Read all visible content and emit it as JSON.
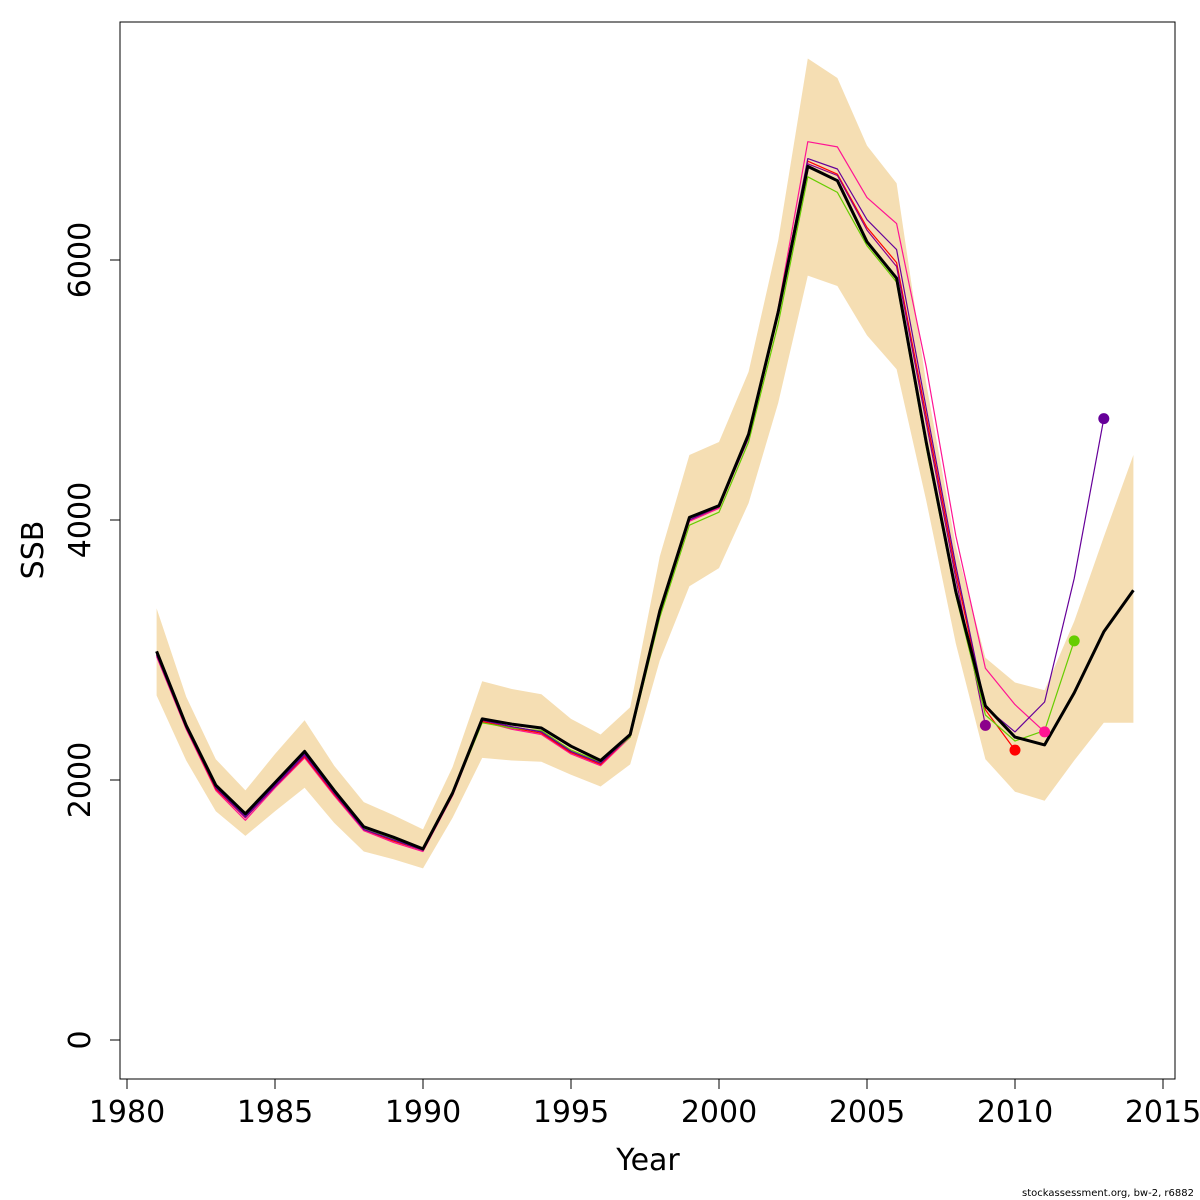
{
  "chart_data": {
    "type": "line",
    "xlabel": "Year",
    "ylabel": "SSB",
    "xlim": [
      1980,
      2015
    ],
    "ylim": [
      0,
      8000
    ],
    "x_ticks": [
      "1980",
      "1985",
      "1990",
      "1995",
      "2000",
      "2005",
      "2010",
      "2015"
    ],
    "y_ticks": [
      "0",
      "2000",
      "4000",
      "6000"
    ],
    "legend": "none",
    "grid": false,
    "confidence_band": {
      "color": "#F5DEB3",
      "x": [
        1981,
        1982,
        1983,
        1984,
        1985,
        1986,
        1987,
        1988,
        1989,
        1990,
        1991,
        1992,
        1993,
        1994,
        1995,
        1996,
        1997,
        1998,
        1999,
        2000,
        2001,
        2002,
        2003,
        2004,
        2005,
        2006,
        2007,
        2008,
        2009,
        2010,
        2011,
        2012,
        2013,
        2014
      ],
      "lower": [
        2650,
        2150,
        1760,
        1570,
        1760,
        1940,
        1670,
        1450,
        1390,
        1320,
        1710,
        2170,
        2150,
        2140,
        2040,
        1950,
        2120,
        2920,
        3490,
        3630,
        4130,
        4900,
        5880,
        5800,
        5420,
        5160,
        4150,
        3050,
        2160,
        1910,
        1840,
        2150,
        2440,
        2440
      ],
      "upper": [
        3320,
        2640,
        2160,
        1920,
        2200,
        2460,
        2110,
        1830,
        1730,
        1620,
        2100,
        2760,
        2700,
        2660,
        2470,
        2350,
        2560,
        3720,
        4500,
        4600,
        5140,
        6150,
        7550,
        7400,
        6880,
        6590,
        5050,
        3800,
        2940,
        2750,
        2690,
        3220,
        3870,
        4500
      ]
    },
    "series": [
      {
        "color": "#000000",
        "x": [
          1981,
          1982,
          1983,
          1984,
          1985,
          1986,
          1987,
          1988,
          1989,
          1990,
          1991,
          1992,
          1993,
          1994,
          1995,
          1996,
          1997,
          1998,
          1999,
          2000,
          2001,
          2002,
          2003,
          2004,
          2005,
          2006,
          2007,
          2008,
          2009,
          2010,
          2011,
          2012,
          2013,
          2014
        ],
        "values": [
          2990,
          2420,
          1960,
          1740,
          1980,
          2220,
          1920,
          1640,
          1560,
          1470,
          1900,
          2470,
          2430,
          2400,
          2260,
          2150,
          2350,
          3300,
          4020,
          4110,
          4660,
          5600,
          6720,
          6610,
          6140,
          5860,
          4600,
          3450,
          2570,
          2330,
          2270,
          2670,
          3140,
          3460
        ]
      },
      {
        "color": "#FF1493",
        "x": [
          1981,
          1982,
          1983,
          1984,
          1985,
          1986,
          1987,
          1988,
          1989,
          1990,
          1991,
          1992,
          1993,
          1994,
          1995,
          1996,
          1997,
          1998,
          1999,
          2000,
          2001,
          2002,
          2003,
          2004,
          2005,
          2006,
          2007,
          2008,
          2009,
          2010,
          2011
        ],
        "values": [
          2950,
          2390,
          1920,
          1690,
          1940,
          2170,
          1880,
          1610,
          1520,
          1450,
          1880,
          2450,
          2390,
          2350,
          2200,
          2110,
          2330,
          3280,
          3990,
          4090,
          4640,
          5630,
          6910,
          6870,
          6480,
          6280,
          5180,
          3880,
          2860,
          2580,
          2370
        ]
      },
      {
        "color": "#FF0000",
        "x": [
          1981,
          1982,
          1983,
          1984,
          1985,
          1986,
          1987,
          1988,
          1989,
          1990,
          1991,
          1992,
          1993,
          1994,
          1995,
          1996,
          1997,
          1998,
          1999,
          2000,
          2001,
          2002,
          2003,
          2004,
          2005,
          2006,
          2007,
          2008,
          2009,
          2010
        ],
        "values": [
          2960,
          2400,
          1930,
          1710,
          1950,
          2180,
          1890,
          1620,
          1530,
          1460,
          1890,
          2450,
          2400,
          2360,
          2210,
          2120,
          2340,
          3300,
          4000,
          4100,
          4640,
          5600,
          6760,
          6660,
          6250,
          5980,
          4800,
          3600,
          2540,
          2230
        ]
      },
      {
        "color": "#8B008B",
        "x": [
          1981,
          1982,
          1983,
          1984,
          1985,
          1986,
          1987,
          1988,
          1989,
          1990,
          1991,
          1992,
          1993,
          1994,
          1995,
          1996,
          1997,
          1998,
          1999,
          2000,
          2001,
          2002,
          2003,
          2004,
          2005,
          2006,
          2007,
          2008,
          2009
        ],
        "values": [
          2960,
          2400,
          1940,
          1710,
          1950,
          2190,
          1900,
          1620,
          1540,
          1460,
          1890,
          2460,
          2410,
          2370,
          2220,
          2130,
          2340,
          3290,
          4000,
          4100,
          4630,
          5580,
          6740,
          6650,
          6230,
          5950,
          4750,
          3550,
          2420
        ]
      },
      {
        "color": "#66CD00",
        "x": [
          1981,
          1982,
          1983,
          1984,
          1985,
          1986,
          1987,
          1988,
          1989,
          1990,
          1991,
          1992,
          1993,
          1994,
          1995,
          1996,
          1997,
          1998,
          1999,
          2000,
          2001,
          2002,
          2003,
          2004,
          2005,
          2006,
          2007,
          2008,
          2009,
          2010,
          2011,
          2012
        ],
        "values": [
          2980,
          2410,
          1950,
          1730,
          1970,
          2210,
          1910,
          1630,
          1550,
          1460,
          1890,
          2440,
          2400,
          2380,
          2230,
          2140,
          2330,
          3250,
          3960,
          4060,
          4600,
          5510,
          6640,
          6520,
          6110,
          5830,
          4560,
          3420,
          2500,
          2300,
          2380,
          3070
        ]
      },
      {
        "color": "#660099",
        "x": [
          1981,
          1982,
          1983,
          1984,
          1985,
          1986,
          1987,
          1988,
          1989,
          1990,
          1991,
          1992,
          1993,
          1994,
          1995,
          1996,
          1997,
          1998,
          1999,
          2000,
          2001,
          2002,
          2003,
          2004,
          2005,
          2006,
          2007,
          2008,
          2009,
          2010,
          2011,
          2012,
          2013
        ],
        "values": [
          2970,
          2410,
          1940,
          1720,
          1960,
          2200,
          1900,
          1620,
          1540,
          1460,
          1890,
          2460,
          2410,
          2370,
          2220,
          2130,
          2340,
          3290,
          4000,
          4110,
          4650,
          5610,
          6780,
          6700,
          6310,
          6080,
          4860,
          3650,
          2560,
          2370,
          2600,
          3550,
          4780
        ]
      }
    ],
    "terminal_points": [
      {
        "x": 2009,
        "y": 2420,
        "color": "#8B008B"
      },
      {
        "x": 2010,
        "y": 2230,
        "color": "#FF0000"
      },
      {
        "x": 2011,
        "y": 2370,
        "color": "#FF1493"
      },
      {
        "x": 2012,
        "y": 3070,
        "color": "#66CD00"
      },
      {
        "x": 2013,
        "y": 4780,
        "color": "#660099"
      }
    ]
  },
  "footer": "stockassessment.org, bw-2, r6882"
}
